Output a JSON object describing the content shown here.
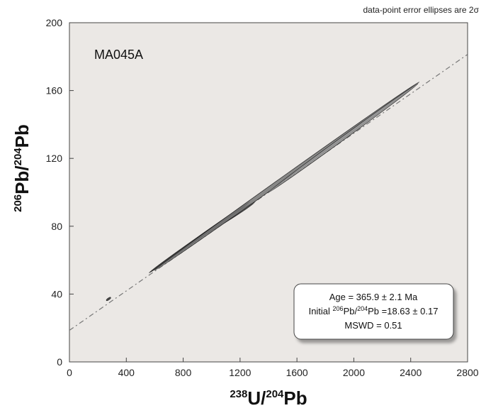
{
  "chart_data": {
    "type": "scatter",
    "annotation_top": "data-point error ellipses are 2σ",
    "sample_label": "MA045A",
    "xlabel": {
      "base1": "238",
      "main1": "U/",
      "base2": "204",
      "main2": "Pb"
    },
    "ylabel": {
      "base1": "206",
      "main1": "Pb/",
      "base2": "204",
      "main2": "Pb"
    },
    "xlim": [
      0,
      2800
    ],
    "ylim": [
      0,
      200
    ],
    "x_ticks": [
      0,
      400,
      800,
      1200,
      1600,
      2000,
      2400,
      2800
    ],
    "y_ticks": [
      0,
      40,
      80,
      120,
      160,
      200
    ],
    "x_tick_labels": [
      "0",
      "400",
      "800",
      "1200",
      "1600",
      "2000",
      "2400",
      "2800"
    ],
    "y_tick_labels": [
      "0",
      "40",
      "80",
      "120",
      "160",
      "200"
    ],
    "grid": false,
    "isochron": {
      "intercept": 18.63,
      "slope": 0.0581
    },
    "ellipses": [
      {
        "x1": 260,
        "y1": 36.2,
        "x2": 290,
        "y2": 38.0,
        "width": 2.5,
        "fill": "#333333"
      },
      {
        "x1": 560,
        "y1": 52.5,
        "x2": 1270,
        "y2": 94.5,
        "width": 3.5,
        "fill": "#222222"
      },
      {
        "x1": 900,
        "y1": 73.0,
        "x2": 1300,
        "y2": 94.0,
        "width": 4.5,
        "fill": "#555555"
      },
      {
        "x1": 600,
        "y1": 54.0,
        "x2": 2460,
        "y2": 165.0,
        "width": 6,
        "fill": "#777777"
      },
      {
        "x1": 1400,
        "y1": 100.0,
        "x2": 2450,
        "y2": 164.0,
        "width": 5,
        "fill": "#999999"
      }
    ],
    "stats_box": {
      "age": "Age = 365.9 ± 2.1 Ma",
      "initial_prefix": "Initial ",
      "initial_sup1": "206",
      "initial_mid": "Pb/",
      "initial_sup2": "204",
      "initial_suffix": "Pb =18.63 ± 0.17",
      "mswd": "MSWD = 0.51"
    },
    "colors": {
      "plot_bg": "#ebe8e5",
      "line": "#777777",
      "frame": "#444444"
    }
  }
}
